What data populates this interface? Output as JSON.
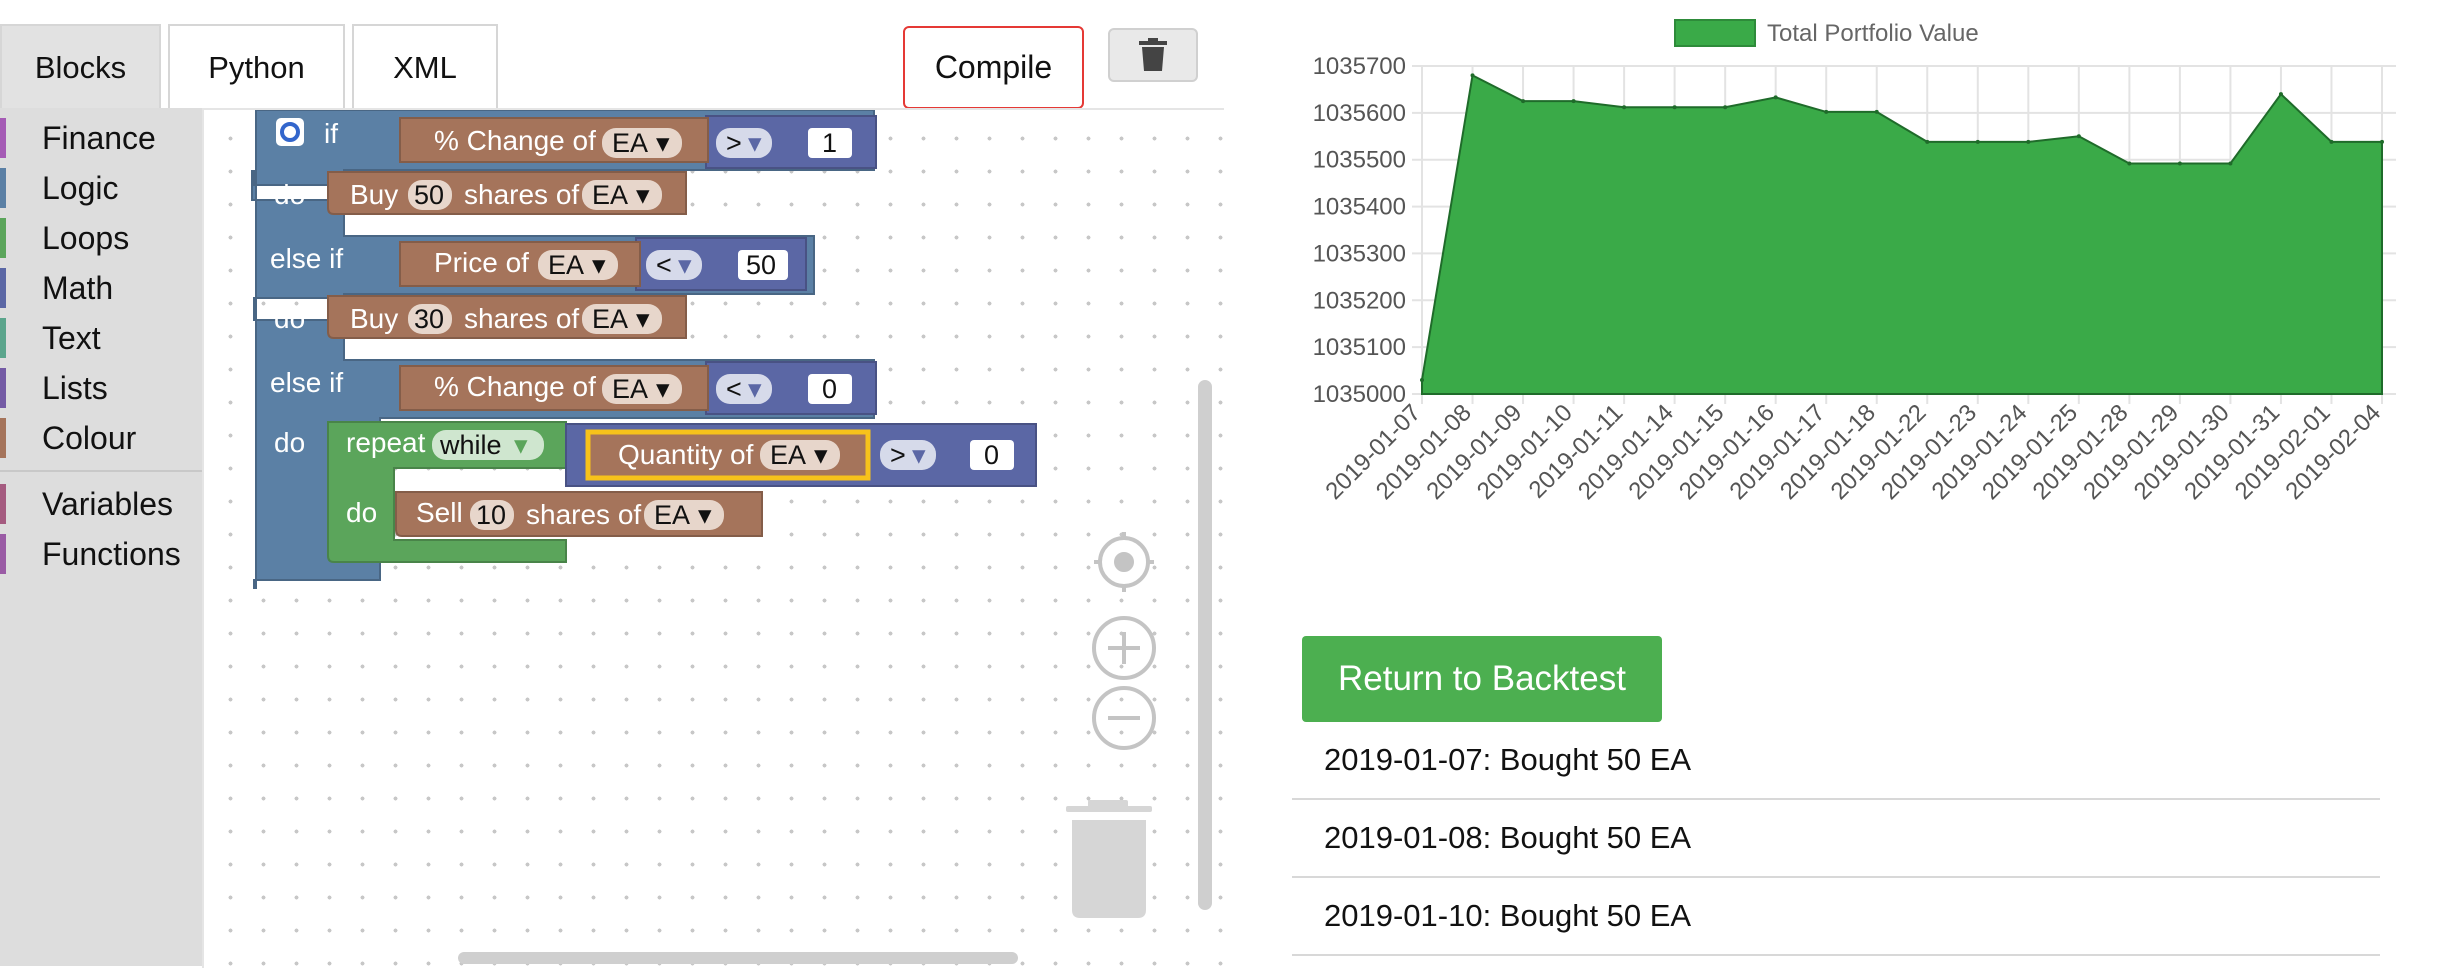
{
  "tabs": [
    {
      "label": "Blocks",
      "active": true
    },
    {
      "label": "Python",
      "active": false
    },
    {
      "label": "XML",
      "active": false
    }
  ],
  "toolbar": {
    "compile_label": "Compile",
    "trash_icon": "trash-icon"
  },
  "toolbox": {
    "categories": [
      {
        "label": "Finance",
        "color": "#a55bb5"
      },
      {
        "label": "Logic",
        "color": "#5b80a5"
      },
      {
        "label": "Loops",
        "color": "#5ba55b"
      },
      {
        "label": "Math",
        "color": "#5b67a5"
      },
      {
        "label": "Text",
        "color": "#5ba58c"
      },
      {
        "label": "Lists",
        "color": "#745ba5"
      },
      {
        "label": "Colour",
        "color": "#a5745b"
      }
    ],
    "categories2": [
      {
        "label": "Variables",
        "color": "#a55b80"
      },
      {
        "label": "Functions",
        "color": "#9a5ba5"
      }
    ]
  },
  "blocks": {
    "if_label": "if",
    "do_label": "do",
    "else_if_label": "else if",
    "pct_change_label": "% Change of",
    "price_label": "Price of",
    "buy_label": "Buy",
    "sell_label": "Sell",
    "shares_of_label": "shares of",
    "repeat_label": "repeat",
    "while_label": "while",
    "quantity_label": "Quantity of",
    "ticker": "EA",
    "op_gt": ">",
    "op_lt": "<",
    "cond1_value": "1",
    "buy1_qty": "50",
    "cond2_value": "50",
    "buy2_qty": "30",
    "cond3_value": "0",
    "loop_value": "0",
    "sell_qty": "10",
    "colors": {
      "logic": "#5b80a5",
      "finance": "#a5745b",
      "loops": "#5ba55b",
      "math": "#5b67a5"
    }
  },
  "workspace_controls": [
    "recenter-icon",
    "zoom-in-icon",
    "zoom-out-icon",
    "trash-can-icon"
  ],
  "chart_data": {
    "type": "area",
    "legend": [
      "Total Portfolio Value"
    ],
    "legend_position": "top",
    "categories": [
      "2019-01-07",
      "2019-01-08",
      "2019-01-09",
      "2019-01-10",
      "2019-01-11",
      "2019-01-14",
      "2019-01-15",
      "2019-01-16",
      "2019-01-17",
      "2019-01-18",
      "2019-01-22",
      "2019-01-23",
      "2019-01-24",
      "2019-01-25",
      "2019-01-28",
      "2019-01-29",
      "2019-01-30",
      "2019-01-31",
      "2019-02-01",
      "2019-02-04"
    ],
    "series": [
      {
        "name": "Total Portfolio Value",
        "color": "#3aaa48",
        "values": [
          1035030,
          1035680,
          1035625,
          1035625,
          1035612,
          1035612,
          1035612,
          1035633,
          1035602,
          1035602,
          1035538,
          1035538,
          1035538,
          1035550,
          1035492,
          1035492,
          1035492,
          1035640,
          1035538,
          1035538
        ]
      }
    ],
    "yticks": [
      1035000,
      1035100,
      1035200,
      1035300,
      1035400,
      1035500,
      1035600,
      1035700
    ],
    "ylim": [
      1035000,
      1035700
    ],
    "grid": true
  },
  "return_button_label": "Return to Backtest",
  "trades": [
    "2019-01-07: Bought 50 EA",
    "2019-01-08: Bought 50 EA",
    "2019-01-10: Bought 50 EA"
  ]
}
